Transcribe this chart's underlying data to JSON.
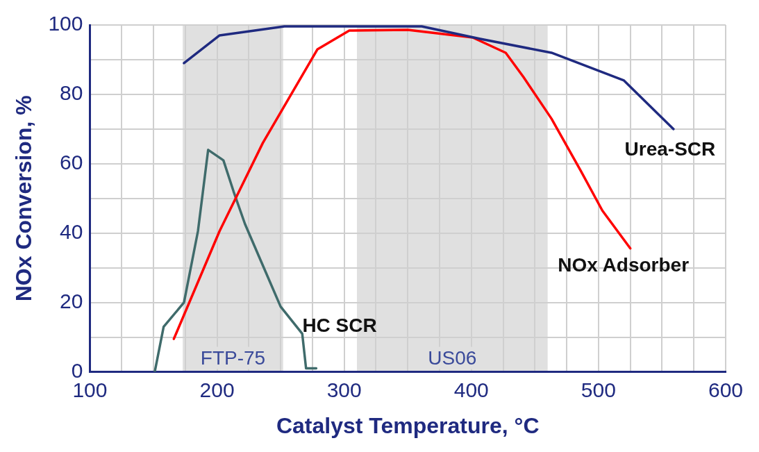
{
  "chart_data": {
    "type": "line",
    "xlabel": "Catalyst Temperature, °C",
    "ylabel": "NOx Conversion, %",
    "xlim": [
      100,
      600
    ],
    "ylim": [
      0,
      100
    ],
    "xticks": [
      100,
      {
        "value": 125,
        "label": null
      },
      {
        "value": 150,
        "label": null
      },
      {
        "value": 175,
        "label": null
      },
      200,
      {
        "value": 225,
        "label": null
      },
      {
        "value": 250,
        "label": null
      },
      {
        "value": 275,
        "label": null
      },
      300,
      {
        "value": 325,
        "label": null
      },
      {
        "value": 350,
        "label": null
      },
      {
        "value": 375,
        "label": null
      },
      400,
      {
        "value": 425,
        "label": null
      },
      {
        "value": 450,
        "label": null
      },
      {
        "value": 475,
        "label": null
      },
      500,
      {
        "value": 525,
        "label": null
      },
      {
        "value": 550,
        "label": null
      },
      {
        "value": 575,
        "label": null
      },
      600
    ],
    "yticks": [
      0,
      {
        "value": 10,
        "label": null
      },
      20,
      {
        "value": 30,
        "label": null
      },
      40,
      {
        "value": 50,
        "label": null
      },
      60,
      {
        "value": 70,
        "label": null
      },
      80,
      {
        "value": 90,
        "label": null
      },
      100
    ],
    "grid": true,
    "legend": false,
    "marker": "none",
    "line_style": "solid",
    "bands": [
      {
        "axis": "x",
        "from": 173,
        "to": 252,
        "label": "FTP-75",
        "color": "#e0e0e0"
      },
      {
        "axis": "x",
        "from": 310,
        "to": 460,
        "label": "US06",
        "color": "#e0e0e0"
      }
    ],
    "series": [
      {
        "name": "Urea-SCR",
        "color": "#1f2a80",
        "x": [
          174,
          202,
          253,
          300,
          361,
          407,
          463,
          520,
          559
        ],
        "values": [
          89,
          97,
          99.6,
          99.6,
          99.6,
          96,
          92,
          84,
          70
        ]
      },
      {
        "name": "NOx Adsorber",
        "color": "#ff0000",
        "x": [
          166,
          202,
          236,
          279,
          304,
          350,
          401,
          427,
          441,
          463,
          486,
          503,
          525
        ],
        "values": [
          9.5,
          40.6,
          66,
          93,
          98.4,
          98.6,
          96.4,
          92,
          85,
          73,
          58,
          46.5,
          35.6
        ]
      },
      {
        "name": "HC SCR",
        "color": "#3f6b6b",
        "x": [
          151,
          158,
          174,
          185,
          193,
          205,
          213,
          222,
          236,
          250,
          267,
          270,
          278
        ],
        "values": [
          0,
          13,
          20,
          40.6,
          64,
          61,
          52,
          42.6,
          30.7,
          18.8,
          11,
          1,
          1
        ]
      }
    ]
  }
}
